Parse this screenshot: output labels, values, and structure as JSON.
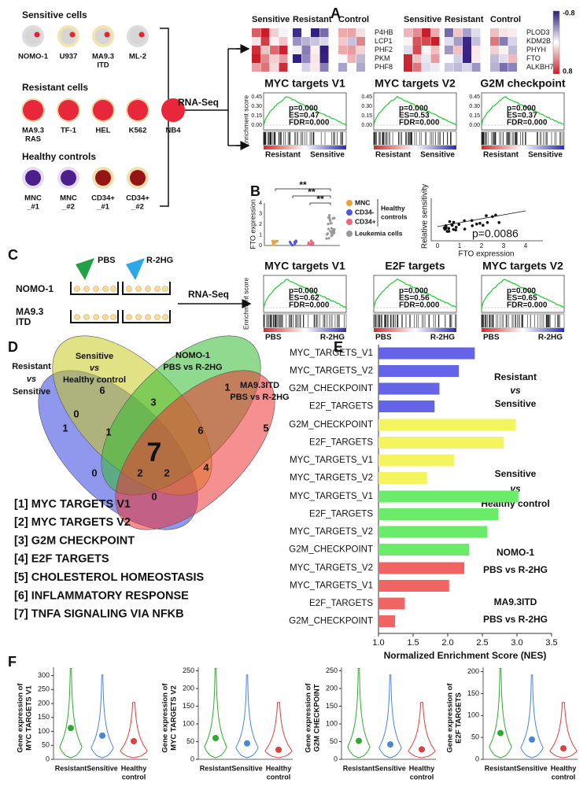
{
  "panel_a": {
    "label": "A",
    "sensitive": {
      "title": "Sensitive cells",
      "cells": [
        [
          "NOMO-1"
        ],
        [
          "U937"
        ],
        [
          "MA9.3",
          "ITD"
        ],
        [
          "ML-2"
        ]
      ]
    },
    "resistant": {
      "title": "Resistant cells",
      "cells": [
        [
          "MA9.3",
          "RAS"
        ],
        [
          "TF-1"
        ],
        [
          "HEL"
        ],
        [
          "K562"
        ],
        [
          "NB4"
        ]
      ]
    },
    "healthy": {
      "title": "Healthy controls",
      "cells": [
        [
          "MNC",
          "_#1"
        ],
        [
          "MNC",
          "_#2"
        ],
        [
          "CD34+",
          "_#1"
        ],
        [
          "CD34+",
          "_#2"
        ]
      ]
    },
    "method": "RNA-Seq",
    "heatmaps": [
      {
        "groups": [
          "Sensitive",
          "Resistant",
          "Control"
        ],
        "genes": [
          "P4HB",
          "LCP1",
          "PHF2",
          "PKM",
          "PHF8"
        ]
      },
      {
        "groups": [
          "Sensitive",
          "Resistant",
          "Control"
        ],
        "genes": [
          "PLOD3",
          "KDM2B",
          "PHYH",
          "FTO",
          "ALKBH7"
        ]
      }
    ],
    "colorbar": [
      "-0.8",
      "0.8"
    ],
    "gsea": {
      "ylabel": "Enrichment score",
      "left": "Resistant",
      "right": "Sensitive",
      "plots": [
        {
          "title": "MYC targets V1",
          "stats": [
            "p=0.000",
            "ES=0.47",
            "FDR=0.000"
          ],
          "ticks": [
            "0.45",
            "0.30",
            "0.15",
            "0.00"
          ]
        },
        {
          "title": "MYC targets V2",
          "stats": [
            "p=0.000",
            "ES=0.53",
            "FDR=0.000"
          ],
          "ticks": [
            "0.45",
            "0.30",
            "0.15",
            "0.00"
          ]
        },
        {
          "title": "G2M checkpoint",
          "stats": [
            "p=0.000",
            "ES=0.37",
            "FDR=0.000"
          ],
          "ticks": [
            "0.45",
            "0.30",
            "0.15",
            "0.00"
          ]
        }
      ]
    }
  },
  "panel_b": {
    "label": "B",
    "ylabel": "FTO expression",
    "yticks": [
      "4",
      "3",
      "2",
      "1",
      "0"
    ],
    "stars": [
      "**",
      "**",
      "**"
    ],
    "legend": [
      "MNC",
      "CD34-",
      "CD34+",
      "Leukemia cells"
    ],
    "legend_group": [
      "Healthy",
      "controls"
    ],
    "scatter": {
      "ylabel": "Relative sensitivity",
      "xlabel": "FTO expression",
      "xticks": [
        "0",
        "1",
        "2",
        "3",
        "4"
      ],
      "p": "p=0.0086"
    }
  },
  "panel_c": {
    "label": "C",
    "treatments": [
      "PBS",
      "R-2HG"
    ],
    "cells": [
      [
        "NOMO-1"
      ],
      [
        "MA9.3",
        "ITD"
      ]
    ],
    "method": "RNA-Seq",
    "gsea": {
      "ylabel": "Enrichment score",
      "left": "PBS",
      "right": "R-2HG",
      "plots": [
        {
          "title": "MYC targets V1",
          "stats": [
            "p=0.000",
            "ES=0.62",
            "FDR=0.000"
          ]
        },
        {
          "title": "E2F targets",
          "stats": [
            "p=0.000",
            "ES=0.56",
            "FDR=0.000"
          ]
        },
        {
          "title": "MYC targets V2",
          "stats": [
            "p=0.000",
            "ES=0.65",
            "FDR=0.000"
          ]
        }
      ]
    }
  },
  "panel_d": {
    "label": "D",
    "sets": [
      {
        "name": [
          "Resistant",
          "vs",
          "Sensitive"
        ],
        "color": "#3344dd"
      },
      {
        "name": [
          "Sensitive",
          "vs",
          "Healthy control"
        ],
        "color": "#c8c820"
      },
      {
        "name": [
          "NOMO-1",
          "PBS vs R-2HG"
        ],
        "color": "#33bb33"
      },
      {
        "name": [
          "MA9.3ITD",
          "PBS vs R-2HG"
        ],
        "color": "#ee3333"
      }
    ],
    "regions": [
      "6",
      "1",
      "3",
      "0",
      "1",
      "6",
      "1",
      "5",
      "0",
      "2",
      "7",
      "2",
      "4",
      "0"
    ],
    "pathways": [
      {
        "text": "[1] MYC TARGETS V1",
        "color": "#dd2222"
      },
      {
        "text": "[2] MYC TARGETS V2",
        "color": "#dd2222"
      },
      {
        "text": "[3] G2M CHECKPOINT",
        "color": "#dd2222"
      },
      {
        "text": "[4] E2F TARGETS",
        "color": "#dd2222"
      },
      {
        "text": "[5] CHOLESTEROL HOMEOSTASIS",
        "color": "#111111"
      },
      {
        "text": "[6] INFLAMMATORY RESPONSE",
        "color": "#111111"
      },
      {
        "text": "[7] TNFA SIGNALING VIA NFKB",
        "color": "#111111"
      }
    ]
  },
  "chart_data": [
    {
      "type": "bar",
      "label": "E",
      "orientation": "horizontal",
      "xlabel": "Normalized Enrichment Score (NES)",
      "xlim": [
        1,
        3.5
      ],
      "xticks": [
        {
          "value": 1,
          "label": "1.0"
        },
        1.5,
        {
          "value": 2,
          "label": "2.0"
        },
        2.5,
        {
          "value": 3,
          "label": "3.0"
        },
        3.5
      ],
      "series": [
        {
          "name": [
            "Resistant",
            "vs",
            "Sensitive"
          ],
          "color": "#6464e8",
          "categories": [
            "MYC_TARGETS_V1",
            "MYC_TARGETS_V2",
            "G2M_CHECKPOINT",
            "E2F_TARGETS"
          ],
          "values": [
            2.39,
            2.16,
            1.88,
            1.81
          ]
        },
        {
          "name": [
            "Sensitive",
            "vs",
            "Healthy control"
          ],
          "color": "#f4f45e",
          "categories": [
            "G2M_CHECKPOINT",
            "E2F_TARGETS",
            "MYC_TARGETS_V1",
            "MYC_TARGETS_V2"
          ],
          "values": [
            2.98,
            2.81,
            2.09,
            1.7
          ]
        },
        {
          "name": [
            "NOMO-1",
            "PBS vs R-2HG"
          ],
          "color": "#6aec6a",
          "categories": [
            "MYC_TARGETS_V1",
            "E2F_TARGETS",
            "MYC_TARGETS_V2",
            "G2M_CHECKPOINT"
          ],
          "values": [
            3.02,
            2.73,
            2.57,
            2.31
          ]
        },
        {
          "name": [
            "MA9.3ITD",
            "PBS vs R-2HG"
          ],
          "color": "#f06464",
          "categories": [
            "MYC_TARGETS_V2",
            "MYC_TARGETS_V1",
            "E2F_TARGETS",
            "G2M_CHECKPOINT"
          ],
          "values": [
            2.24,
            2.02,
            1.38,
            1.24
          ]
        }
      ]
    },
    {
      "type": "violin",
      "label": "F",
      "ylabel": [
        "Gene expression of",
        "MYC TARGETS V1"
      ],
      "categories": [
        [
          "Resistant"
        ],
        [
          "Sensitive"
        ],
        [
          "Healthy",
          "control"
        ]
      ],
      "colors": [
        "#2eaa2e",
        "#4a86d8",
        "#dd4040"
      ],
      "values": [
        112,
        85,
        65
      ],
      "ylim": [
        0,
        330
      ],
      "yticks": [
        0,
        50,
        100,
        150,
        200,
        250,
        300
      ]
    },
    {
      "type": "violin",
      "ylabel": [
        "Gene expression of",
        "MYC TARGETS V2"
      ],
      "categories": [
        [
          "Resistant"
        ],
        [
          "Sensitive"
        ],
        [
          "Healthy",
          "control"
        ]
      ],
      "colors": [
        "#2eaa2e",
        "#4a86d8",
        "#dd4040"
      ],
      "values": [
        60,
        45,
        27
      ],
      "ylim": [
        0,
        260
      ],
      "yticks": [
        0,
        50,
        100,
        150,
        200,
        250
      ]
    },
    {
      "type": "violin",
      "ylabel": [
        "Gene expression of",
        "G2M CHECKPOINT"
      ],
      "categories": [
        [
          "Resistant"
        ],
        [
          "Sensitive"
        ],
        [
          "Healthy",
          "control"
        ]
      ],
      "colors": [
        "#2eaa2e",
        "#4a86d8",
        "#dd4040"
      ],
      "values": [
        52,
        42,
        28
      ],
      "ylim": [
        0,
        260
      ],
      "yticks": [
        0,
        50,
        100,
        150,
        200,
        250
      ]
    },
    {
      "type": "violin",
      "ylabel": [
        "Gene expression of",
        "E2F TARGETS"
      ],
      "categories": [
        [
          "Resistant"
        ],
        [
          "Sensitive"
        ],
        [
          "Healthy",
          "control"
        ]
      ],
      "colors": [
        "#2eaa2e",
        "#4a86d8",
        "#dd4040"
      ],
      "values": [
        60,
        45,
        25
      ],
      "ylim": [
        0,
        210
      ],
      "yticks": [
        0,
        50,
        100,
        150,
        200
      ]
    }
  ]
}
